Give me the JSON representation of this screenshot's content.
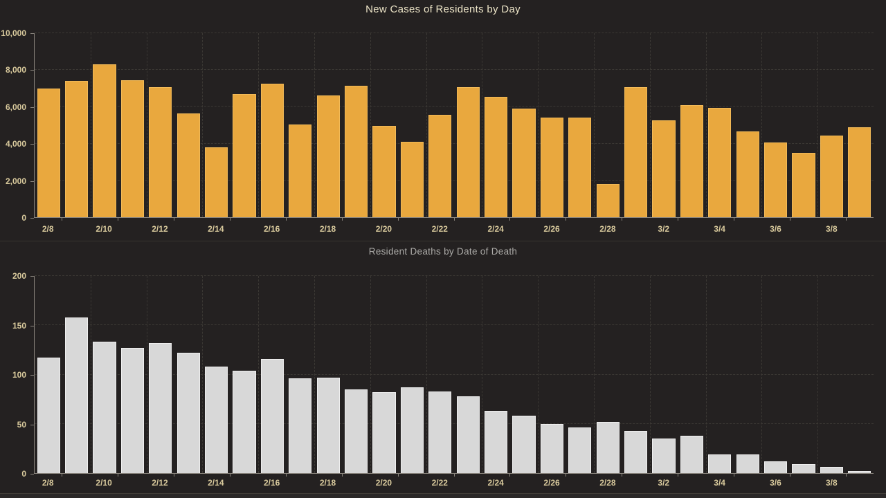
{
  "page": {
    "background_color": "#242121",
    "accent_gold": "#E9A83E",
    "bar_gray": "#D8D8D8",
    "axis_label_color": "#D8C99C"
  },
  "chart_data": [
    {
      "type": "bar",
      "title": "New Cases of Residents by Day",
      "title_color": "#EDE5C8",
      "bar_color_class": "gold",
      "categories": [
        "2/8",
        "2/9",
        "2/10",
        "2/11",
        "2/12",
        "2/13",
        "2/14",
        "2/15",
        "2/16",
        "2/17",
        "2/18",
        "2/19",
        "2/20",
        "2/21",
        "2/22",
        "2/23",
        "2/24",
        "2/25",
        "2/26",
        "2/27",
        "2/28",
        "3/1",
        "3/2",
        "3/3",
        "3/4",
        "3/5",
        "3/6",
        "3/7",
        "3/8",
        "3/9"
      ],
      "values": [
        7000,
        7400,
        8300,
        7450,
        7050,
        5650,
        3800,
        6700,
        7250,
        5050,
        6600,
        7150,
        4950,
        4100,
        5550,
        7050,
        6550,
        5900,
        5400,
        5400,
        1800,
        7050,
        5250,
        6100,
        5950,
        4650,
        4050,
        3500,
        4450,
        4900
      ],
      "xlabel": "",
      "ylabel": "",
      "ylim": [
        0,
        10000
      ],
      "yticks": [
        0,
        2000,
        4000,
        6000,
        8000,
        10000
      ],
      "ytick_labels": [
        "0",
        "2,000",
        "4,000",
        "6,000",
        "8,000",
        "10,000"
      ],
      "xtick_every": 2,
      "grid": true,
      "legend": "none"
    },
    {
      "type": "bar",
      "title": "Resident Deaths by Date of Death",
      "title_color": "#ACABA8",
      "bar_color_class": "gray",
      "categories": [
        "2/8",
        "2/9",
        "2/10",
        "2/11",
        "2/12",
        "2/13",
        "2/14",
        "2/15",
        "2/16",
        "2/17",
        "2/18",
        "2/19",
        "2/20",
        "2/21",
        "2/22",
        "2/23",
        "2/24",
        "2/25",
        "2/26",
        "2/27",
        "2/28",
        "3/1",
        "3/2",
        "3/3",
        "3/4",
        "3/5",
        "3/6",
        "3/7",
        "3/8",
        "3/9"
      ],
      "values": [
        117,
        158,
        133,
        127,
        132,
        122,
        108,
        104,
        116,
        96,
        97,
        85,
        82,
        87,
        83,
        78,
        63,
        58,
        50,
        46,
        52,
        43,
        35,
        38,
        19,
        19,
        12,
        9,
        6,
        2
      ],
      "xlabel": "",
      "ylabel": "",
      "ylim": [
        0,
        200
      ],
      "yticks": [
        0,
        50,
        100,
        150,
        200
      ],
      "ytick_labels": [
        "0",
        "50",
        "100",
        "150",
        "200"
      ],
      "xtick_every": 2,
      "grid": true,
      "legend": "none"
    }
  ]
}
